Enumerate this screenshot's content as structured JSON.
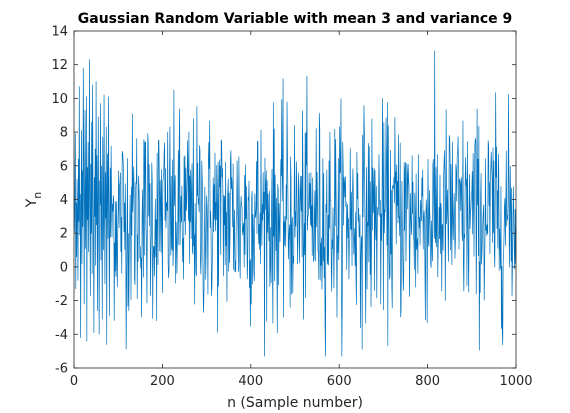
{
  "chart_data": {
    "type": "line",
    "title": "Gaussian Random Variable with mean 3 and variance 9",
    "xlabel": "n (Sample number)",
    "ylabel_main": "Y",
    "ylabel_sub": "n",
    "xlim": [
      0,
      1000
    ],
    "ylim": [
      -6,
      14
    ],
    "x_ticks": [
      0,
      200,
      400,
      600,
      800,
      1000
    ],
    "y_ticks": [
      -6,
      -4,
      -2,
      0,
      2,
      4,
      6,
      8,
      10,
      12,
      14
    ],
    "grid": false,
    "legend": "none",
    "line_color": "#0072BD",
    "series": [
      {
        "x_start": 1,
        "x_step": 1,
        "distribution": {
          "mean": 3,
          "variance": 9
        },
        "values": [
          2.1,
          4.5,
          7.9,
          -1.3,
          3.8,
          0.6,
          5.2,
          3.1,
          -0.8,
          6.4,
          2.7,
          10.7,
          1.9,
          4.3,
          -4.2,
          3.6,
          8.1,
          0.2,
          5.7,
          2.4,
          11.8,
          6.9,
          -2.2,
          4.1,
          9.3,
          1.1,
          3.5,
          10.1,
          -4.4,
          5.9,
          2.8,
          7.4,
          0.9,
          4.6,
          12.3,
          3.2,
          -1.7,
          6.1,
          2.0,
          8.6,
          -0.4,
          10.8,
          4.9,
          1.6,
          -3.9,
          5.3,
          3.0,
          7.0,
          0.1,
          11.0,
          2.5,
          6.6,
          -2.6,
          4.2,
          8.9,
          1.4,
          -4.0,
          5.1,
          3.7,
          9.7,
          0.4,
          6.0,
          2.2,
          -3.1,
          7.7,
          4.4,
          1.0,
          10.2,
          3.3,
          -1.0,
          5.6,
          2.9,
          8.3,
          -4.6,
          4.8,
          6.7,
          1.7,
          10.1,
          3.9,
          -2.9
        ]
      }
    ]
  }
}
